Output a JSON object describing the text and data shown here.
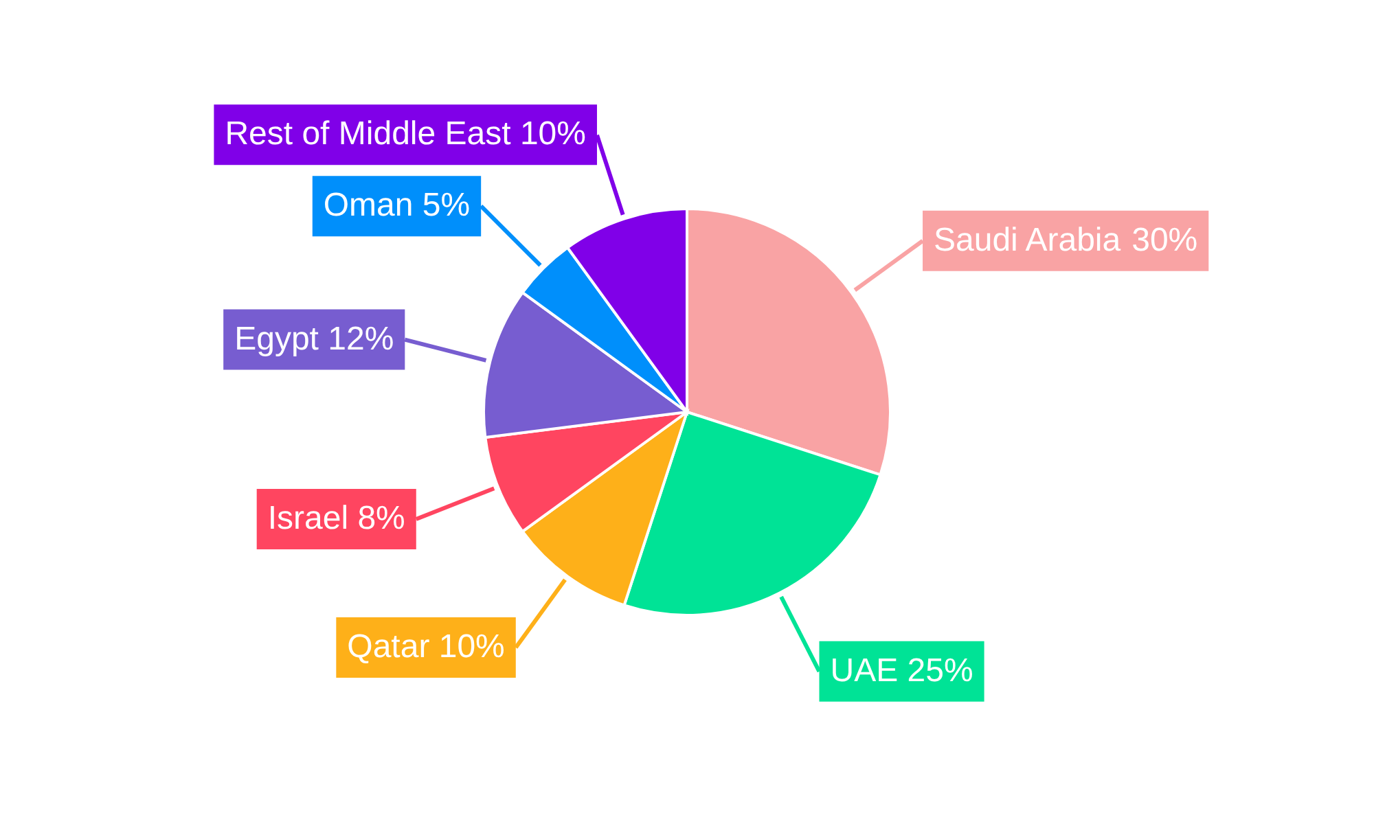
{
  "chart_data": {
    "type": "pie",
    "categories": [
      "Saudi Arabia",
      "UAE",
      "Qatar",
      "Israel",
      "Egypt",
      "Oman",
      "Rest of Middle East"
    ],
    "values": [
      30,
      25,
      10,
      8,
      12,
      5,
      10
    ],
    "colors": [
      "#f9a3a4",
      "#00e396",
      "#feb019",
      "#ff4560",
      "#775dd0",
      "#008ffb",
      "#8000e8"
    ],
    "value_labels": [
      "30%",
      "25%",
      "10%",
      "8%",
      "12%",
      "5%",
      "10%"
    ]
  }
}
